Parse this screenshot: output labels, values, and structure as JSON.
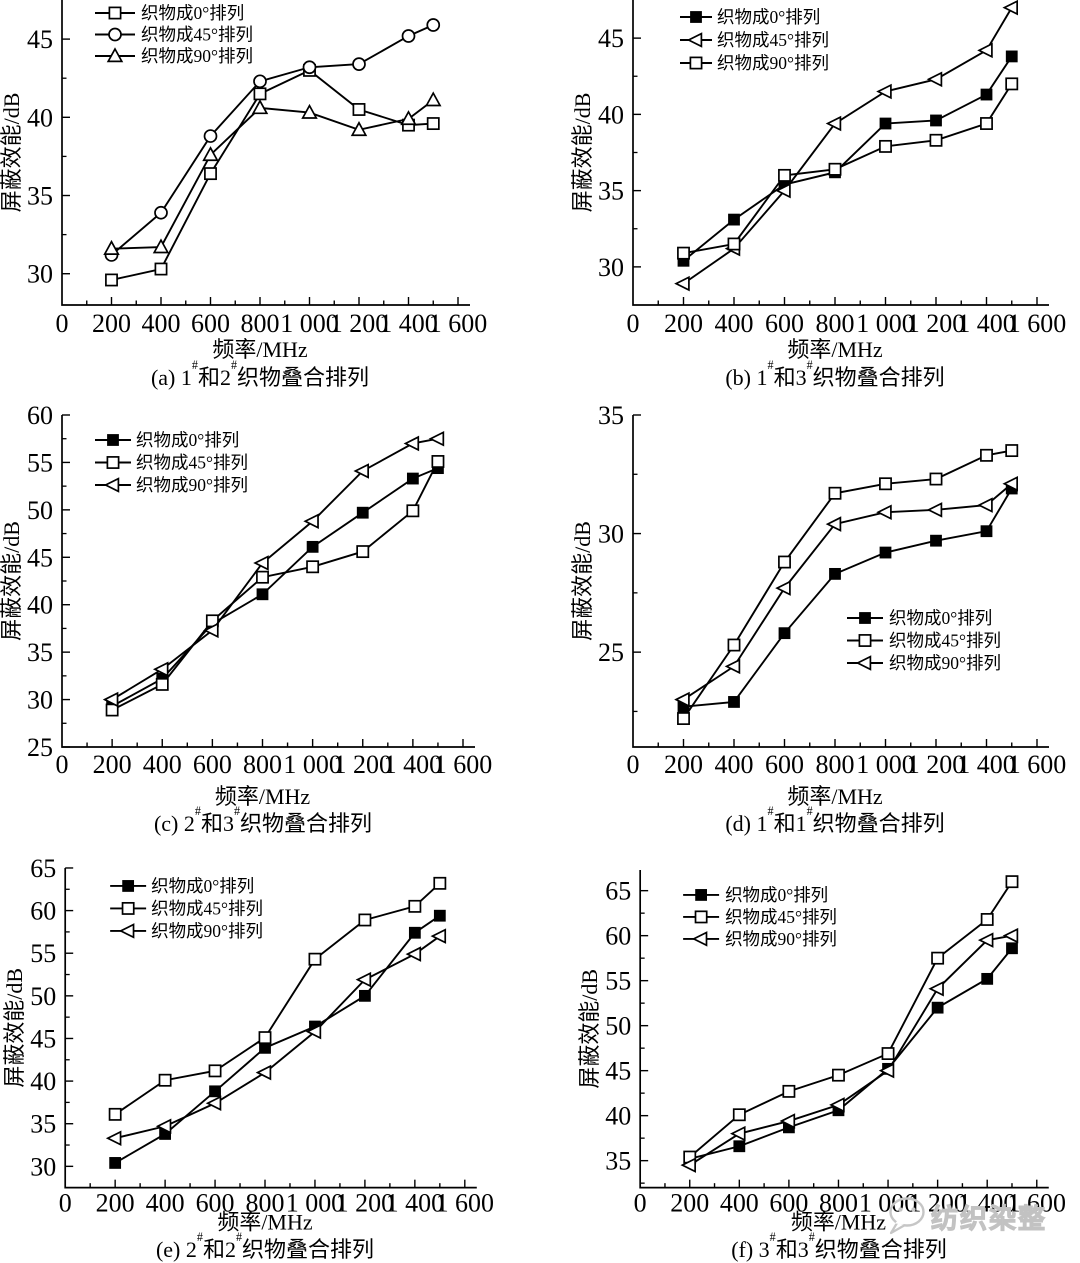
{
  "figure": {
    "background": "#ffffff",
    "line_color": "#000000",
    "axis_labels": {
      "x": "频率/MHz",
      "y": "屏蔽效能/dB"
    },
    "legend_labels": [
      "织物成0°排列",
      "织物成45°排列",
      "织物成90°排列"
    ]
  },
  "watermark": {
    "icon": "wechat-icon",
    "text": "纺织染整",
    "color": "#c6c6c6"
  },
  "chart_data": [
    {
      "id": "a",
      "type": "line",
      "caption": {
        "tag": "(a)",
        "fabric_a": "1",
        "sup": "#",
        "conj": "和",
        "fabric_b": "2",
        "suffix": "织物叠合排列"
      },
      "xlabel": "频率/MHz",
      "ylabel": "屏蔽效能/dB",
      "x": [
        200,
        400,
        600,
        800,
        1000,
        1200,
        1400,
        1500
      ],
      "xticks": [
        0,
        200,
        400,
        600,
        800,
        1000,
        1200,
        1400,
        1600
      ],
      "xtick_labels": [
        "0",
        "200",
        "400",
        "600",
        "800",
        "1 000",
        "1 200",
        "1 400",
        "1 600"
      ],
      "xlim": [
        0,
        1640
      ],
      "ylim": [
        28,
        47.5
      ],
      "yticks": [
        30,
        35,
        40,
        45
      ],
      "grid": false,
      "legend_position": "top-left",
      "series": [
        {
          "name": "织物成0°排列",
          "marker": "square-open",
          "values": [
            29.6,
            30.3,
            36.4,
            41.5,
            43.0,
            40.5,
            39.5,
            39.6
          ]
        },
        {
          "name": "织物成45°排列",
          "marker": "circle-open",
          "values": [
            31.2,
            33.9,
            38.8,
            42.3,
            43.2,
            43.4,
            45.2,
            45.9
          ]
        },
        {
          "name": "织物成90°排列",
          "marker": "triangle-up-open",
          "values": [
            31.6,
            31.7,
            37.6,
            40.6,
            40.3,
            39.2,
            39.9,
            41.1
          ]
        }
      ]
    },
    {
      "id": "b",
      "type": "line",
      "caption": {
        "tag": "(b)",
        "fabric_a": "1",
        "sup": "#",
        "conj": "和",
        "fabric_b": "3",
        "suffix": "织物叠合排列"
      },
      "xlabel": "频率/MHz",
      "ylabel": "屏蔽效能/dB",
      "x": [
        200,
        400,
        600,
        800,
        1000,
        1200,
        1400,
        1500
      ],
      "xticks": [
        0,
        200,
        400,
        600,
        800,
        1000,
        1200,
        1400,
        1600
      ],
      "xtick_labels": [
        "0",
        "200",
        "400",
        "600",
        "800",
        "1 000",
        "1 200",
        "1 400",
        "1 600"
      ],
      "xlim": [
        0,
        1640
      ],
      "ylim": [
        27.5,
        47.5
      ],
      "yticks": [
        30,
        35,
        40,
        45
      ],
      "grid": false,
      "legend_position": "top-left",
      "series": [
        {
          "name": "织物成0°排列",
          "marker": "square-filled",
          "values": [
            30.4,
            33.1,
            35.4,
            36.2,
            39.4,
            39.6,
            41.3,
            43.8
          ]
        },
        {
          "name": "织物成45°排列",
          "marker": "triangle-left-open",
          "values": [
            28.9,
            31.2,
            35.0,
            39.4,
            41.5,
            42.3,
            44.2,
            47.0
          ]
        },
        {
          "name": "织物成90°排列",
          "marker": "square-open",
          "values": [
            30.9,
            31.5,
            36.0,
            36.4,
            37.9,
            38.3,
            39.4,
            42.0
          ]
        }
      ]
    },
    {
      "id": "c",
      "type": "line",
      "caption": {
        "tag": "(c)",
        "fabric_a": "2",
        "sup": "#",
        "conj": "和",
        "fabric_b": "3",
        "suffix": "织物叠合排列"
      },
      "xlabel": "频率/MHz",
      "ylabel": "屏蔽效能/dB",
      "x": [
        200,
        400,
        600,
        800,
        1000,
        1200,
        1400,
        1500
      ],
      "xticks": [
        0,
        200,
        400,
        600,
        800,
        1000,
        1200,
        1400,
        1600
      ],
      "xtick_labels": [
        "0",
        "200",
        "400",
        "600",
        "800",
        "1 000",
        "1 200",
        "1 400",
        "1 600"
      ],
      "xlim": [
        0,
        1640
      ],
      "ylim": [
        25,
        60
      ],
      "yticks": [
        25,
        30,
        35,
        40,
        45,
        50,
        55,
        60
      ],
      "grid": false,
      "legend_position": "top-left",
      "series": [
        {
          "name": "织物成0°排列",
          "marker": "square-filled",
          "values": [
            29.3,
            32.2,
            38.0,
            41.1,
            46.1,
            49.7,
            53.3,
            54.4
          ]
        },
        {
          "name": "织物成45°排列",
          "marker": "square-open",
          "values": [
            28.9,
            31.6,
            38.3,
            42.9,
            44.0,
            45.6,
            49.9,
            55.1
          ]
        },
        {
          "name": "织物成90°排列",
          "marker": "triangle-left-open",
          "values": [
            30.0,
            33.2,
            37.3,
            44.4,
            48.8,
            54.1,
            57.0,
            57.5
          ]
        }
      ]
    },
    {
      "id": "d",
      "type": "line",
      "caption": {
        "tag": "(d)",
        "fabric_a": "1",
        "sup": "#",
        "conj": "和",
        "fabric_b": "1",
        "suffix": "织物叠合排列"
      },
      "xlabel": "频率/MHz",
      "ylabel": "屏蔽效能/dB",
      "x": [
        200,
        400,
        600,
        800,
        1000,
        1200,
        1400,
        1500
      ],
      "xticks": [
        0,
        200,
        400,
        600,
        800,
        1000,
        1200,
        1400,
        1600
      ],
      "xtick_labels": [
        "0",
        "200",
        "400",
        "600",
        "800",
        "1 000",
        "1 200",
        "1 400",
        "1 600"
      ],
      "xlim": [
        0,
        1640
      ],
      "ylim": [
        21,
        35
      ],
      "yticks": [
        25,
        30,
        35
      ],
      "grid": false,
      "legend_position": "middle-right",
      "series": [
        {
          "name": "织物成0°排列",
          "marker": "square-filled",
          "values": [
            22.7,
            22.9,
            25.8,
            28.3,
            29.2,
            29.7,
            30.1,
            31.9
          ]
        },
        {
          "name": "织物成45°排列",
          "marker": "square-open",
          "values": [
            22.2,
            25.3,
            28.8,
            31.7,
            32.1,
            32.3,
            33.3,
            33.5
          ]
        },
        {
          "name": "织物成90°排列",
          "marker": "triangle-left-open",
          "values": [
            23.0,
            24.4,
            27.7,
            30.4,
            30.9,
            31.0,
            31.2,
            32.1
          ]
        }
      ]
    },
    {
      "id": "e",
      "type": "line",
      "caption": {
        "tag": "(e)",
        "fabric_a": "2",
        "sup": "#",
        "conj": "和",
        "fabric_b": "2",
        "suffix": "织物叠合排列"
      },
      "xlabel": "频率/MHz",
      "ylabel": "屏蔽效能/dB",
      "x": [
        200,
        400,
        600,
        800,
        1000,
        1200,
        1400,
        1500
      ],
      "xticks": [
        0,
        200,
        400,
        600,
        800,
        1000,
        1200,
        1400,
        1600
      ],
      "xtick_labels": [
        "0",
        "200",
        "400",
        "600",
        "800",
        "1 000",
        "1 200",
        "1 400",
        "1 600"
      ],
      "xlim": [
        0,
        1640
      ],
      "ylim": [
        27.5,
        65
      ],
      "yticks": [
        30,
        35,
        40,
        45,
        50,
        55,
        60,
        65
      ],
      "grid": false,
      "legend_position": "top-left",
      "series": [
        {
          "name": "织物成0°排列",
          "marker": "square-filled",
          "values": [
            30.4,
            33.8,
            38.8,
            43.9,
            46.4,
            50.0,
            57.4,
            59.4
          ]
        },
        {
          "name": "织物成45°排列",
          "marker": "square-open",
          "values": [
            36.1,
            40.1,
            41.2,
            45.1,
            54.3,
            58.9,
            60.5,
            63.2
          ]
        },
        {
          "name": "织物成90°排列",
          "marker": "triangle-left-open",
          "values": [
            33.3,
            34.7,
            37.4,
            41.0,
            45.8,
            51.9,
            54.9,
            57.0
          ]
        }
      ]
    },
    {
      "id": "f",
      "type": "line",
      "caption": {
        "tag": "(f)",
        "fabric_a": "3",
        "sup": "#",
        "conj": "和",
        "fabric_b": "3",
        "suffix": "织物叠合排列"
      },
      "xlabel": "频率/MHz",
      "ylabel": "屏蔽效能/dB",
      "x": [
        200,
        400,
        600,
        800,
        1000,
        1200,
        1400,
        1500
      ],
      "xticks": [
        0,
        200,
        400,
        600,
        800,
        1000,
        1200,
        1400,
        1600
      ],
      "xtick_labels": [
        "0",
        "200",
        "400",
        "600",
        "800",
        "1 000",
        "1 200",
        "1 400",
        "1 600"
      ],
      "xlim": [
        0,
        1640
      ],
      "ylim": [
        32,
        67.3
      ],
      "yticks": [
        35,
        40,
        45,
        50,
        55,
        60,
        65
      ],
      "grid": false,
      "legend_position": "top-left",
      "series": [
        {
          "name": "织物成0°排列",
          "marker": "square-filled",
          "values": [
            35.2,
            36.6,
            38.7,
            40.6,
            45.2,
            52.0,
            55.2,
            58.6
          ]
        },
        {
          "name": "织物成45°排列",
          "marker": "square-open",
          "values": [
            35.4,
            40.1,
            42.7,
            44.5,
            46.9,
            57.5,
            61.8,
            66.0
          ]
        },
        {
          "name": "织物成90°排列",
          "marker": "triangle-left-open",
          "values": [
            34.5,
            38.0,
            39.4,
            41.2,
            45.0,
            54.1,
            59.5,
            60.0
          ]
        }
      ]
    }
  ]
}
